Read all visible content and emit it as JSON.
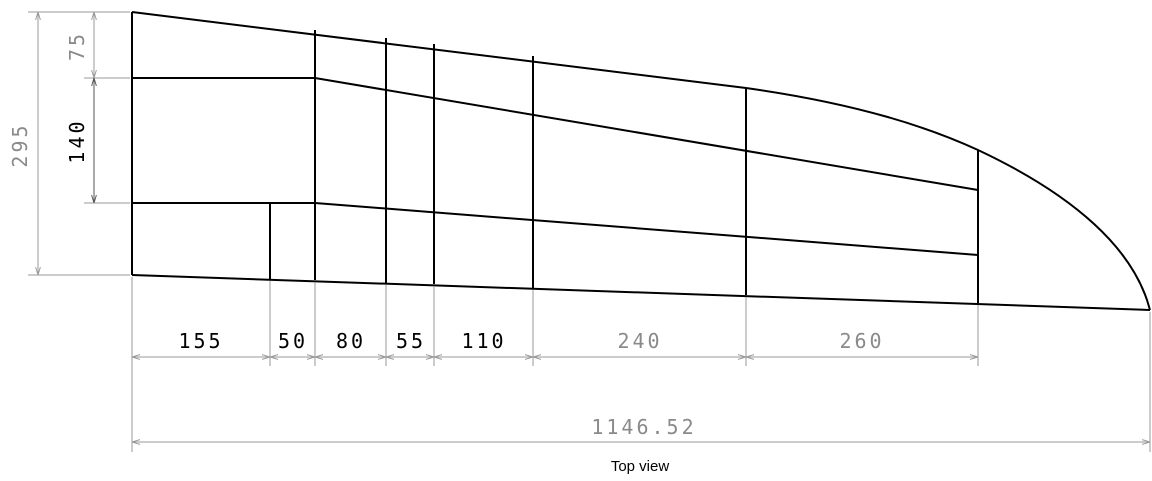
{
  "drawing": {
    "caption": "Top view",
    "total_span": "1146.52",
    "vertical_dims": {
      "total": "295",
      "upper": "75",
      "middle": "140"
    },
    "horizontal_dims": [
      "155",
      "50",
      "80",
      "55",
      "110",
      "240",
      "260"
    ],
    "colors": {
      "geometry": "#000000",
      "dimension": "#9a9a9a"
    }
  }
}
